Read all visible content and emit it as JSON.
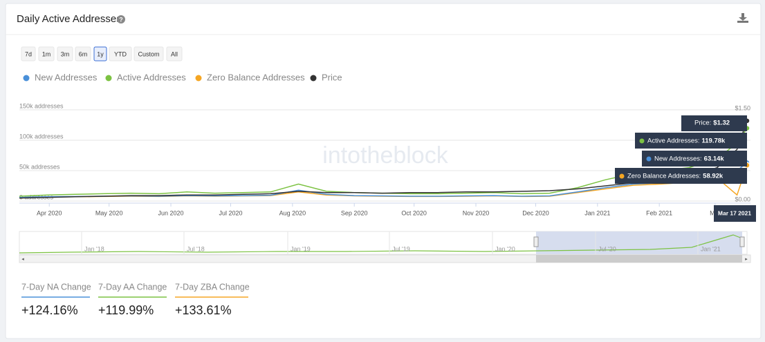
{
  "header": {
    "title": "Daily Active Addresses"
  },
  "range_buttons": [
    "7d",
    "1m",
    "3m",
    "6m",
    "1y",
    "YTD",
    "Custom",
    "All"
  ],
  "selected_range": 4,
  "chart_data": {
    "type": "line",
    "watermark": "intotheblock",
    "x": [
      "2020-03-17",
      "2020-03-31",
      "2020-04-14",
      "2020-04-28",
      "2020-05-12",
      "2020-05-26",
      "2020-06-09",
      "2020-06-23",
      "2020-07-07",
      "2020-07-21",
      "2020-08-04",
      "2020-08-18",
      "2020-09-01",
      "2020-09-15",
      "2020-09-29",
      "2020-10-13",
      "2020-10-27",
      "2020-11-10",
      "2020-11-24",
      "2020-12-08",
      "2020-12-22",
      "2021-01-05",
      "2021-01-19",
      "2021-02-02",
      "2021-02-16",
      "2021-03-02",
      "2021-03-12",
      "2021-03-17"
    ],
    "xlim": [
      "2020-03-17",
      "2021-03-17"
    ],
    "xticks": [
      {
        "value": "2020-04-01",
        "label": "Apr 2020"
      },
      {
        "value": "2020-05-01",
        "label": "May 2020"
      },
      {
        "value": "2020-06-01",
        "label": "Jun 2020"
      },
      {
        "value": "2020-07-01",
        "label": "Jul 2020"
      },
      {
        "value": "2020-08-01",
        "label": "Aug 2020"
      },
      {
        "value": "2020-09-01",
        "label": "Sep 2020"
      },
      {
        "value": "2020-10-01",
        "label": "Oct 2020"
      },
      {
        "value": "2020-11-01",
        "label": "Nov 2020"
      },
      {
        "value": "2020-12-01",
        "label": "Dec 2020"
      },
      {
        "value": "2021-01-01",
        "label": "Jan 2021"
      },
      {
        "value": "2021-02-01",
        "label": "Feb 2021"
      },
      {
        "value": "2021-03-01",
        "label": "Mar"
      }
    ],
    "ylim": [
      0,
      150000
    ],
    "yticks": [
      {
        "value": 0,
        "label": "0 addresses"
      },
      {
        "value": 50000,
        "label": "50k addresses"
      },
      {
        "value": 100000,
        "label": "100k addresses"
      },
      {
        "value": 150000,
        "label": "150k addresses"
      }
    ],
    "y2lim": [
      0,
      1.5
    ],
    "y2ticks": [
      {
        "value": 0,
        "label": "$0.00"
      },
      {
        "value": 1.5,
        "label": "$1.50"
      }
    ],
    "grid": true,
    "series": [
      {
        "name": "New Addresses",
        "color": "#4a90d9",
        "values": [
          6000,
          7000,
          7500,
          8000,
          8500,
          8000,
          9000,
          8500,
          9000,
          9500,
          18000,
          11000,
          9000,
          8500,
          8000,
          8000,
          8500,
          9000,
          8000,
          8500,
          15000,
          22000,
          28000,
          30000,
          33000,
          40000,
          50000,
          63140
        ]
      },
      {
        "name": "Active Addresses",
        "color": "#7cc242",
        "values": [
          8000,
          10000,
          11000,
          12000,
          13000,
          12000,
          15000,
          13000,
          14000,
          15000,
          28000,
          16000,
          14000,
          13000,
          12000,
          12000,
          13000,
          14000,
          12000,
          13000,
          22000,
          35000,
          45000,
          50000,
          55000,
          70000,
          95000,
          119780
        ]
      },
      {
        "name": "Zero Balance Addresses",
        "color": "#f5a623",
        "values": [
          5000,
          6500,
          7000,
          7500,
          8000,
          7500,
          8500,
          8000,
          8500,
          9000,
          15000,
          10000,
          8500,
          8000,
          7500,
          7500,
          8000,
          8500,
          7500,
          8000,
          14000,
          20000,
          26000,
          28000,
          31000,
          38000,
          10000,
          58920
        ]
      },
      {
        "name": "Price",
        "color": "#333333",
        "axis": "y2",
        "values": [
          0.05,
          0.06,
          0.07,
          0.08,
          0.09,
          0.09,
          0.1,
          0.1,
          0.11,
          0.12,
          0.16,
          0.14,
          0.14,
          0.13,
          0.14,
          0.14,
          0.15,
          0.15,
          0.16,
          0.17,
          0.2,
          0.25,
          0.3,
          0.32,
          0.4,
          0.55,
          0.85,
          1.32
        ]
      }
    ],
    "tooltip": {
      "date": "Mar 17 2021",
      "items": [
        {
          "label": "Price:",
          "value": "$1.32"
        },
        {
          "label": "Active Addresses:",
          "value": "119.78k"
        },
        {
          "label": "New Addresses:",
          "value": "63.14k"
        },
        {
          "label": "Zero Balance Addresses:",
          "value": "58.92k"
        }
      ]
    }
  },
  "navigator": {
    "labels": [
      "Jan '18",
      "Jul '18",
      "Jan '19",
      "Jul '19",
      "Jan '20",
      "Jul '20",
      "Jan '21"
    ]
  },
  "stats": [
    {
      "label": "7-Day NA Change",
      "value": "+124.16%",
      "color": "#4a90d9"
    },
    {
      "label": "7-Day AA Change",
      "value": "+119.99%",
      "color": "#7cc242"
    },
    {
      "label": "7-Day ZBA Change",
      "value": "+133.61%",
      "color": "#f5a623"
    }
  ]
}
